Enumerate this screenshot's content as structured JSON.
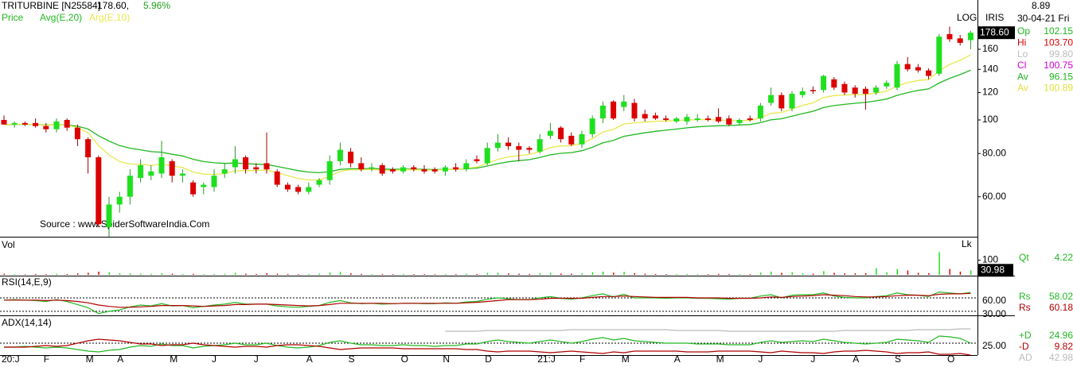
{
  "chart_data": {
    "type": "candlestick",
    "title": "TRITURBINE [N25584]",
    "price_text": "178.60,",
    "change_text": "5.96%",
    "price_label": "Price",
    "source": "Source : www.SpiderSoftwareIndia.Com",
    "log_scale": true,
    "scale_text": "LOG",
    "brand": "IRIS",
    "up_color": "#1fe01f",
    "down_color": "#dd0000",
    "info": {
      "value": "8.89",
      "date": "30-04-21 Fri",
      "rows": [
        {
          "label": "Op",
          "value": "102.15",
          "color": "#1fb51f"
        },
        {
          "label": "Hi",
          "value": "103.70",
          "color": "#dd0000"
        },
        {
          "label": "Lo",
          "value": "99.80",
          "color": "#bbbbbb"
        },
        {
          "label": "Cl",
          "value": "100.75",
          "color": "#cc00cc"
        },
        {
          "label": "Av",
          "value": "96.15",
          "color": "#1fb51f"
        },
        {
          "label": "Av",
          "value": "100.89",
          "color": "#e0e040"
        }
      ]
    },
    "categories": [
      "20:J",
      null,
      null,
      null,
      "F",
      null,
      null,
      null,
      "M",
      null,
      null,
      "A",
      null,
      null,
      null,
      null,
      "M",
      null,
      null,
      null,
      "J",
      null,
      null,
      null,
      "J",
      null,
      null,
      null,
      null,
      "A",
      null,
      null,
      null,
      "S",
      null,
      null,
      null,
      null,
      "O",
      null,
      null,
      null,
      "N",
      null,
      null,
      null,
      "D",
      null,
      null,
      null,
      null,
      "21:J",
      null,
      null,
      null,
      "F",
      null,
      null,
      null,
      "M",
      null,
      null,
      null,
      null,
      "A",
      null,
      null,
      null,
      "M",
      null,
      null,
      null,
      "J",
      null,
      null,
      null,
      null,
      "J",
      null,
      null,
      null,
      "A",
      null,
      null,
      null,
      "S",
      null,
      null,
      null,
      null,
      "O",
      null,
      null
    ],
    "open": [
      100,
      97,
      98,
      98,
      96,
      94,
      100,
      95,
      88,
      78,
      49,
      57,
      60,
      68,
      69,
      70,
      76,
      69,
      66,
      64,
      64,
      70,
      73,
      78,
      73,
      75,
      71,
      65,
      64,
      62,
      65,
      67,
      76,
      81,
      75,
      73,
      74,
      72,
      71,
      73,
      72,
      72,
      71,
      73,
      72,
      77,
      75,
      83,
      86,
      84,
      83,
      81,
      90,
      95,
      90,
      85,
      91,
      101,
      113,
      109,
      112,
      104,
      103,
      101,
      99,
      99,
      100,
      101,
      102,
      101,
      98,
      101,
      101,
      112,
      118,
      108,
      118,
      122,
      122,
      131,
      127,
      124,
      123,
      120,
      125,
      124,
      145,
      142,
      139,
      136,
      177,
      172,
      170
    ],
    "high": [
      103,
      99,
      99,
      101,
      98,
      101,
      101,
      97,
      89,
      79,
      60,
      62,
      72,
      77,
      74,
      87,
      77,
      72,
      67,
      66,
      72,
      75,
      84,
      79,
      75,
      92,
      72,
      66,
      65,
      66,
      68,
      79,
      86,
      83,
      78,
      75,
      75,
      73,
      74,
      74,
      74,
      73,
      74,
      75,
      77,
      79,
      86,
      91,
      89,
      86,
      84,
      91,
      98,
      96,
      92,
      93,
      103,
      113,
      114,
      118,
      115,
      107,
      105,
      103,
      102,
      104,
      104,
      103,
      108,
      103,
      101,
      103,
      112,
      124,
      120,
      121,
      124,
      125,
      135,
      133,
      129,
      126,
      125,
      126,
      130,
      148,
      152,
      145,
      141,
      177,
      186,
      176,
      181
    ],
    "low": [
      97,
      95,
      96,
      95,
      92,
      92,
      93,
      84,
      70,
      49,
      46,
      54,
      57,
      66,
      67,
      68,
      66,
      66,
      60,
      61,
      62,
      68,
      70,
      70,
      70,
      70,
      64,
      62,
      61,
      61,
      64,
      65,
      74,
      73,
      71,
      71,
      69,
      70,
      70,
      71,
      70,
      70,
      69,
      71,
      71,
      75,
      74,
      81,
      82,
      76,
      80,
      80,
      88,
      86,
      84,
      83,
      89,
      98,
      100,
      106,
      99,
      99,
      100,
      99,
      98,
      97,
      99,
      99,
      98,
      96,
      97,
      99,
      99,
      110,
      106,
      106,
      116,
      119,
      120,
      122,
      118,
      116,
      107,
      118,
      123,
      122,
      138,
      137,
      131,
      134,
      168,
      164,
      160
    ],
    "close": [
      97,
      98,
      97,
      96,
      94,
      99,
      95,
      88,
      78,
      50,
      57,
      60,
      69,
      74,
      71,
      78,
      69,
      70,
      61,
      65,
      69,
      72,
      77,
      72,
      72,
      72,
      65,
      63,
      62,
      64,
      67,
      76,
      82,
      75,
      72,
      73,
      70,
      71,
      73,
      72,
      71,
      71,
      73,
      72,
      75,
      76,
      83,
      86,
      84,
      82,
      82,
      88,
      93,
      88,
      85,
      91,
      101,
      110,
      101,
      113,
      101,
      101,
      101,
      100,
      101,
      102,
      101,
      100,
      99,
      97,
      100,
      100,
      110,
      118,
      108,
      119,
      121,
      121,
      134,
      124,
      120,
      119,
      119,
      124,
      128,
      145,
      140,
      139,
      134,
      174,
      171,
      167,
      178.6
    ],
    "averages": [
      {
        "name": "Avg(E,20)",
        "color": "#22b822",
        "values": [
          97,
          97.1,
          97.1,
          97,
          96.7,
          96.9,
          96.7,
          95.9,
          94.2,
          90,
          86.9,
          84.3,
          82.9,
          82,
          81,
          80.7,
          79.6,
          78.7,
          77,
          75.8,
          75.2,
          74.9,
          75.1,
          74.8,
          74.5,
          74.3,
          73.4,
          72.4,
          71.4,
          70.7,
          70.4,
          70.9,
          72,
          72.3,
          72.3,
          72.4,
          72.2,
          72,
          72.1,
          72.1,
          72,
          71.9,
          72,
          72,
          72.3,
          72.6,
          73.6,
          74.8,
          75.7,
          76.3,
          76.8,
          77.9,
          79.3,
          80.1,
          80.5,
          81.5,
          83.4,
          85.9,
          87.3,
          89.7,
          90.8,
          91.8,
          92.7,
          93.4,
          94.1,
          94.9,
          95.5,
          95.9,
          96.2,
          96.3,
          96.7,
          97,
          98.2,
          100.1,
          100.8,
          102.5,
          104.3,
          105.9,
          108.6,
          110,
          110.9,
          111.7,
          112.4,
          113.5,
          114.9,
          117.8,
          119.9,
          121.7,
          122.9,
          127.8,
          131.9,
          135.2,
          139.2
        ]
      },
      {
        "name": "Arg(E,10)",
        "color": "#e8e850",
        "values": [
          97,
          97.2,
          97.2,
          97,
          96.5,
          97,
          96.6,
          95,
          91.9,
          84.3,
          79.3,
          75.8,
          74.6,
          74.5,
          73.9,
          74.6,
          73.6,
          72.9,
          70.7,
          69.7,
          69.6,
          70,
          71.3,
          71.4,
          71.5,
          71.6,
          70.4,
          69.1,
          67.8,
          67.1,
          67.1,
          68.7,
          71.1,
          71.8,
          71.8,
          72,
          71.6,
          71.5,
          71.8,
          71.8,
          71.7,
          71.6,
          71.9,
          71.9,
          72.5,
          73.1,
          74.9,
          76.9,
          78.2,
          78.9,
          79.5,
          81,
          83.2,
          84.1,
          84.3,
          85.5,
          88.3,
          92.3,
          93.9,
          97.4,
          98.1,
          98.6,
          99.1,
          99.3,
          99.6,
          100,
          100.2,
          100.2,
          100,
          99.5,
          99.6,
          99.6,
          101.5,
          104.5,
          105.1,
          107.6,
          110.1,
          112.1,
          116.1,
          117.6,
          118.1,
          118.3,
          118.5,
          119.5,
          121,
          125.4,
          128.1,
          130.1,
          130.8,
          138.7,
          144.6,
          148.7,
          154.1
        ]
      }
    ],
    "ylim": [
      46,
      222
    ],
    "yticks": [
      {
        "value": 60,
        "label": "60.00"
      },
      {
        "value": 80,
        "label": "80.00"
      },
      100,
      120,
      140,
      160
    ],
    "last_price": {
      "value": 178.6,
      "label": "178.60"
    },
    "volume": {
      "title": "Vol",
      "unit": "Lk",
      "ylim": [
        0,
        260
      ],
      "yticks": [
        100
      ],
      "last": 30.98,
      "readout_label": "Qt",
      "readout": "4.22",
      "values": [
        8,
        5,
        4,
        6,
        5,
        7,
        6,
        10,
        14,
        22,
        18,
        12,
        10,
        9,
        7,
        12,
        8,
        6,
        7,
        5,
        6,
        7,
        14,
        8,
        6,
        12,
        8,
        6,
        5,
        6,
        8,
        16,
        20,
        10,
        7,
        6,
        5,
        5,
        6,
        5,
        5,
        4,
        5,
        5,
        8,
        6,
        14,
        15,
        10,
        8,
        6,
        12,
        14,
        9,
        8,
        10,
        18,
        22,
        15,
        20,
        12,
        8,
        6,
        5,
        5,
        6,
        5,
        5,
        7,
        6,
        5,
        5,
        16,
        22,
        14,
        18,
        10,
        8,
        25,
        14,
        10,
        10,
        12,
        45,
        18,
        40,
        30,
        14,
        12,
        155,
        40,
        22,
        30.98
      ]
    },
    "rsi": {
      "title": "RSI(14,E,9)",
      "ylim": [
        21,
        106
      ],
      "yticks": [
        {
          "value": 60,
          "label": "60.00"
        },
        {
          "value": 30,
          "label": "30.00"
        }
      ],
      "series": [
        {
          "name": "Rs",
          "color": "#22b822",
          "last": 58.02,
          "values": [
            55,
            56,
            55,
            54,
            52,
            56,
            52,
            45,
            38,
            25,
            30,
            33,
            40,
            44,
            42,
            47,
            42,
            43,
            38,
            41,
            44,
            46,
            50,
            46,
            46,
            46,
            42,
            40,
            39,
            41,
            43,
            50,
            54,
            49,
            47,
            48,
            46,
            47,
            48,
            48,
            47,
            47,
            49,
            48,
            51,
            52,
            57,
            60,
            58,
            56,
            56,
            60,
            63,
            59,
            57,
            60,
            65,
            69,
            62,
            68,
            60,
            60,
            60,
            59,
            60,
            60,
            59,
            59,
            58,
            57,
            59,
            59,
            64,
            67,
            60,
            66,
            67,
            67,
            71,
            64,
            61,
            60,
            60,
            63,
            65,
            71,
            67,
            66,
            63,
            73,
            71,
            69,
            72
          ]
        },
        {
          "name": "Rs",
          "color": "#b00000",
          "last": 60.18,
          "values": [
            55,
            55,
            55,
            55,
            54,
            55,
            54,
            52,
            49,
            44,
            41,
            39,
            39,
            40,
            41,
            43,
            43,
            43,
            42,
            41,
            42,
            43,
            45,
            45,
            46,
            46,
            45,
            44,
            43,
            42,
            43,
            45,
            48,
            48,
            48,
            48,
            48,
            47,
            48,
            48,
            48,
            48,
            48,
            48,
            49,
            50,
            52,
            54,
            56,
            56,
            56,
            57,
            59,
            59,
            59,
            59,
            61,
            63,
            63,
            64,
            63,
            62,
            61,
            61,
            61,
            61,
            60,
            60,
            60,
            59,
            59,
            59,
            60,
            62,
            61,
            63,
            64,
            65,
            67,
            66,
            65,
            63,
            62,
            62,
            63,
            65,
            66,
            66,
            65,
            68,
            69,
            69,
            70
          ]
        }
      ]
    },
    "adx": {
      "title": "ADX(14,14)",
      "ylim": [
        10,
        60
      ],
      "yticks": [
        {
          "value": 25,
          "label": "25.00"
        }
      ],
      "series": [
        {
          "name": "+D",
          "color": "#22b822",
          "last": 24.96,
          "values": [
            20,
            20,
            21,
            20,
            19,
            20,
            19,
            17,
            15,
            14,
            16,
            17,
            20,
            22,
            21,
            24,
            22,
            22,
            19,
            21,
            22,
            23,
            25,
            23,
            23,
            25,
            22,
            20,
            19,
            20,
            22,
            26,
            28,
            25,
            23,
            23,
            22,
            22,
            23,
            22,
            22,
            21,
            22,
            22,
            24,
            24,
            27,
            29,
            27,
            26,
            25,
            27,
            29,
            27,
            25,
            27,
            30,
            32,
            29,
            31,
            28,
            27,
            26,
            25,
            25,
            25,
            24,
            24,
            24,
            23,
            23,
            23,
            26,
            28,
            26,
            27,
            28,
            27,
            30,
            28,
            26,
            25,
            24,
            25,
            26,
            30,
            29,
            28,
            26,
            34,
            33,
            31,
            25
          ]
        },
        {
          "name": "-D",
          "color": "#b00000",
          "last": 9.82,
          "values": [
            20,
            20,
            20,
            21,
            22,
            21,
            22,
            25,
            28,
            30,
            29,
            28,
            26,
            24,
            24,
            22,
            23,
            23,
            25,
            23,
            22,
            21,
            20,
            21,
            21,
            20,
            22,
            23,
            23,
            22,
            21,
            19,
            17,
            18,
            19,
            19,
            19,
            19,
            18,
            18,
            18,
            18,
            18,
            18,
            17,
            17,
            15,
            14,
            15,
            15,
            15,
            14,
            13,
            14,
            15,
            14,
            13,
            12,
            14,
            13,
            15,
            15,
            15,
            15,
            15,
            14,
            14,
            14,
            15,
            15,
            15,
            15,
            14,
            13,
            15,
            14,
            13,
            13,
            12,
            14,
            15,
            15,
            16,
            15,
            14,
            12,
            13,
            13,
            14,
            11,
            11,
            12,
            10
          ]
        },
        {
          "name": "AD",
          "color": "#bbbbbb",
          "last": 42.98,
          "values": [
            null,
            null,
            null,
            null,
            null,
            null,
            null,
            null,
            null,
            null,
            null,
            null,
            null,
            null,
            null,
            null,
            null,
            null,
            null,
            null,
            null,
            null,
            null,
            null,
            null,
            null,
            null,
            null,
            null,
            null,
            null,
            null,
            null,
            null,
            null,
            null,
            null,
            null,
            null,
            null,
            null,
            null,
            40,
            40,
            40,
            40,
            41,
            41,
            41,
            41,
            41,
            41,
            41,
            41,
            42,
            42,
            42,
            42,
            42,
            42,
            42,
            42,
            42,
            42,
            41,
            41,
            41,
            41,
            41,
            40,
            40,
            40,
            40,
            40,
            40,
            40,
            40,
            40,
            40,
            40,
            41,
            41,
            41,
            41,
            41,
            41,
            41,
            42,
            42,
            42,
            42,
            43,
            43
          ]
        }
      ]
    }
  }
}
